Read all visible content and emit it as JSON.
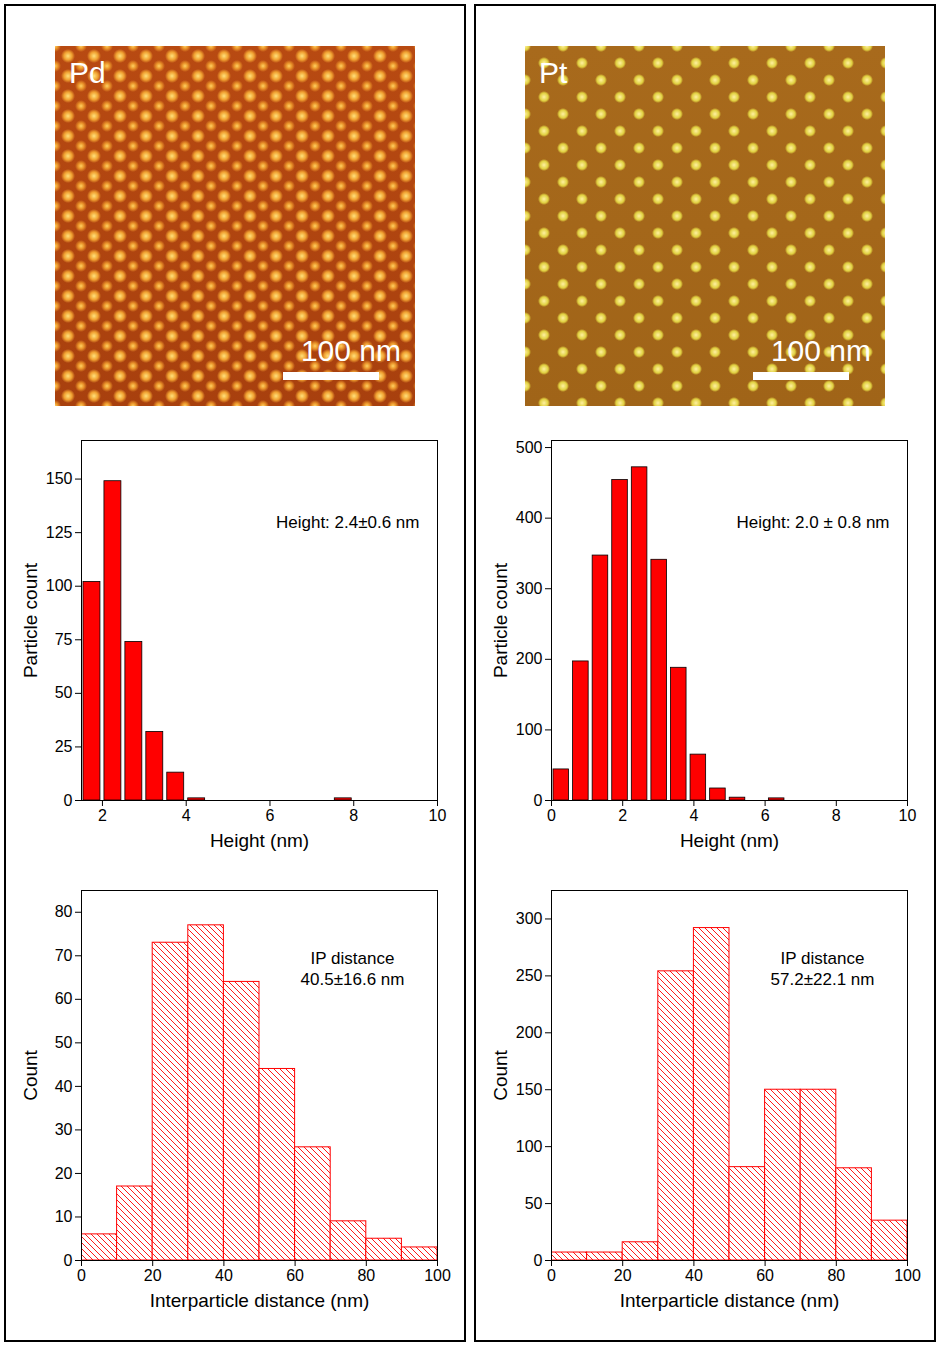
{
  "images": [
    {
      "label": "Pd",
      "scale_bar": "100 nm"
    },
    {
      "label": "Pt",
      "scale_bar": "100 nm"
    }
  ],
  "chart_data": [
    {
      "type": "histogram",
      "x_label": "Height (nm)",
      "y_label": "Particle count",
      "annotation": [
        "Height: 2.4±0.6 nm"
      ],
      "bins": [
        1.5,
        2,
        2.5,
        3,
        3.5,
        4,
        4.5,
        5,
        5.5,
        6,
        6.5,
        7,
        7.5,
        8,
        8.5,
        9,
        9.5,
        10
      ],
      "values": [
        102,
        149,
        74,
        32,
        13,
        1,
        0,
        0,
        0,
        0,
        0,
        0,
        1,
        0,
        0,
        0,
        0
      ],
      "color": "#ff0000",
      "xlim": [
        1.5,
        10
      ],
      "xticks": [
        2,
        4,
        6,
        8,
        10
      ],
      "ylim": [
        0,
        168
      ],
      "yticks": [
        0,
        25,
        50,
        75,
        100,
        125,
        150
      ]
    },
    {
      "type": "histogram",
      "x_label": "Interparticle distance (nm)",
      "y_label": "Count",
      "annotation": [
        "IP distance",
        "40.5±16.6 nm"
      ],
      "bins": [
        0,
        10,
        20,
        30,
        40,
        50,
        60,
        70,
        80,
        90,
        100
      ],
      "values": [
        6,
        17,
        73,
        77,
        64,
        44,
        26,
        9,
        5,
        3
      ],
      "color": "#ff0000",
      "xlim": [
        0,
        100
      ],
      "xticks": [
        0,
        20,
        40,
        60,
        80,
        100
      ],
      "ylim": [
        0,
        85
      ],
      "yticks": [
        0,
        10,
        20,
        30,
        40,
        50,
        60,
        70,
        80
      ]
    },
    {
      "type": "histogram",
      "x_label": "Height (nm)",
      "y_label": "Particle count",
      "annotation": [
        "Height: 2.0 ± 0.8 nm"
      ],
      "bins": [
        0,
        0.55,
        1.1,
        1.65,
        2.2,
        2.75,
        3.3,
        3.85,
        4.4,
        4.95,
        5.5,
        6.05,
        6.6
      ],
      "values": [
        44,
        197,
        347,
        454,
        472,
        341,
        188,
        65,
        17,
        4,
        0,
        3
      ],
      "color": "#ff0000",
      "xlim": [
        0,
        10
      ],
      "xticks": [
        0,
        2,
        4,
        6,
        8,
        10
      ],
      "ylim": [
        0,
        510
      ],
      "yticks": [
        0,
        100,
        200,
        300,
        400,
        500
      ]
    },
    {
      "type": "histogram",
      "x_label": "Interparticle distance (nm)",
      "y_label": "Count",
      "annotation": [
        "IP distance",
        "57.2±22.1 nm"
      ],
      "bins": [
        0,
        10,
        20,
        30,
        40,
        50,
        60,
        70,
        80,
        90,
        100
      ],
      "values": [
        7,
        7,
        16,
        254,
        292,
        82,
        150,
        150,
        81,
        35
      ],
      "color": "#ff0000",
      "xlim": [
        0,
        100
      ],
      "xticks": [
        0,
        20,
        40,
        60,
        80,
        100
      ],
      "ylim": [
        0,
        325
      ],
      "yticks": [
        0,
        50,
        100,
        150,
        200,
        250,
        300
      ]
    }
  ]
}
